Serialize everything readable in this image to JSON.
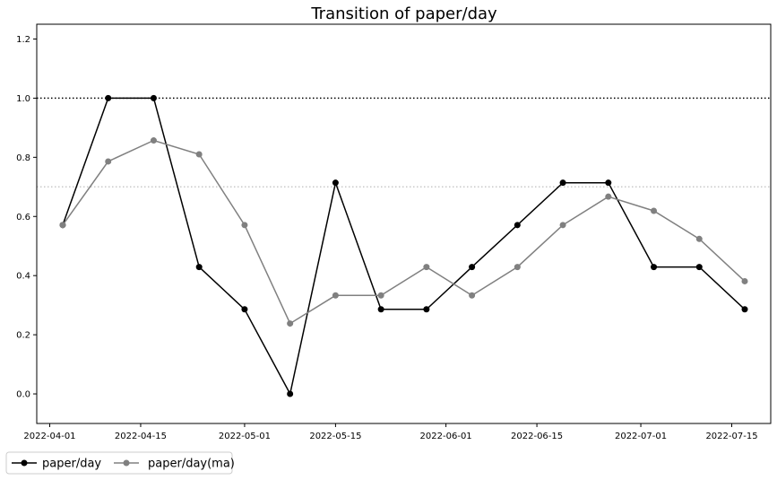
{
  "chart_data": {
    "type": "line",
    "title": "Transition of paper/day",
    "xlabel": "",
    "ylabel": "",
    "x": [
      "2022-04-03",
      "2022-04-10",
      "2022-04-17",
      "2022-04-24",
      "2022-05-01",
      "2022-05-08",
      "2022-05-15",
      "2022-05-22",
      "2022-05-29",
      "2022-06-05",
      "2022-06-12",
      "2022-06-19",
      "2022-06-26",
      "2022-07-03",
      "2022-07-10",
      "2022-07-17"
    ],
    "series": [
      {
        "name": "paper/day",
        "color": "#000000",
        "values": [
          0.571,
          1.0,
          1.0,
          0.429,
          0.286,
          0.0,
          0.714,
          0.286,
          0.286,
          0.429,
          0.571,
          0.714,
          0.714,
          0.429,
          0.429,
          0.286
        ]
      },
      {
        "name": "paper/day(ma)",
        "color": "#808080",
        "values": [
          0.571,
          0.786,
          0.857,
          0.81,
          0.571,
          0.238,
          0.333,
          0.333,
          0.429,
          0.333,
          0.429,
          0.571,
          0.667,
          0.619,
          0.524,
          0.381
        ]
      }
    ],
    "xticks": [
      "2022-04-01",
      "2022-04-15",
      "2022-05-01",
      "2022-05-15",
      "2022-06-01",
      "2022-06-15",
      "2022-07-01",
      "2022-07-15"
    ],
    "yticks": [
      0.0,
      0.2,
      0.4,
      0.6,
      0.8,
      1.0,
      1.2
    ],
    "ylim": [
      -0.1,
      1.25
    ],
    "xlim": [
      "2022-03-30",
      "2022-07-21"
    ],
    "reference_lines": [
      {
        "y": 1.0,
        "color": "#000000",
        "style": "dotted"
      },
      {
        "y": 0.7,
        "color": "#c8c8c8",
        "style": "dotted"
      }
    ],
    "grid": false,
    "legend": "bottom-left, outside plot"
  }
}
